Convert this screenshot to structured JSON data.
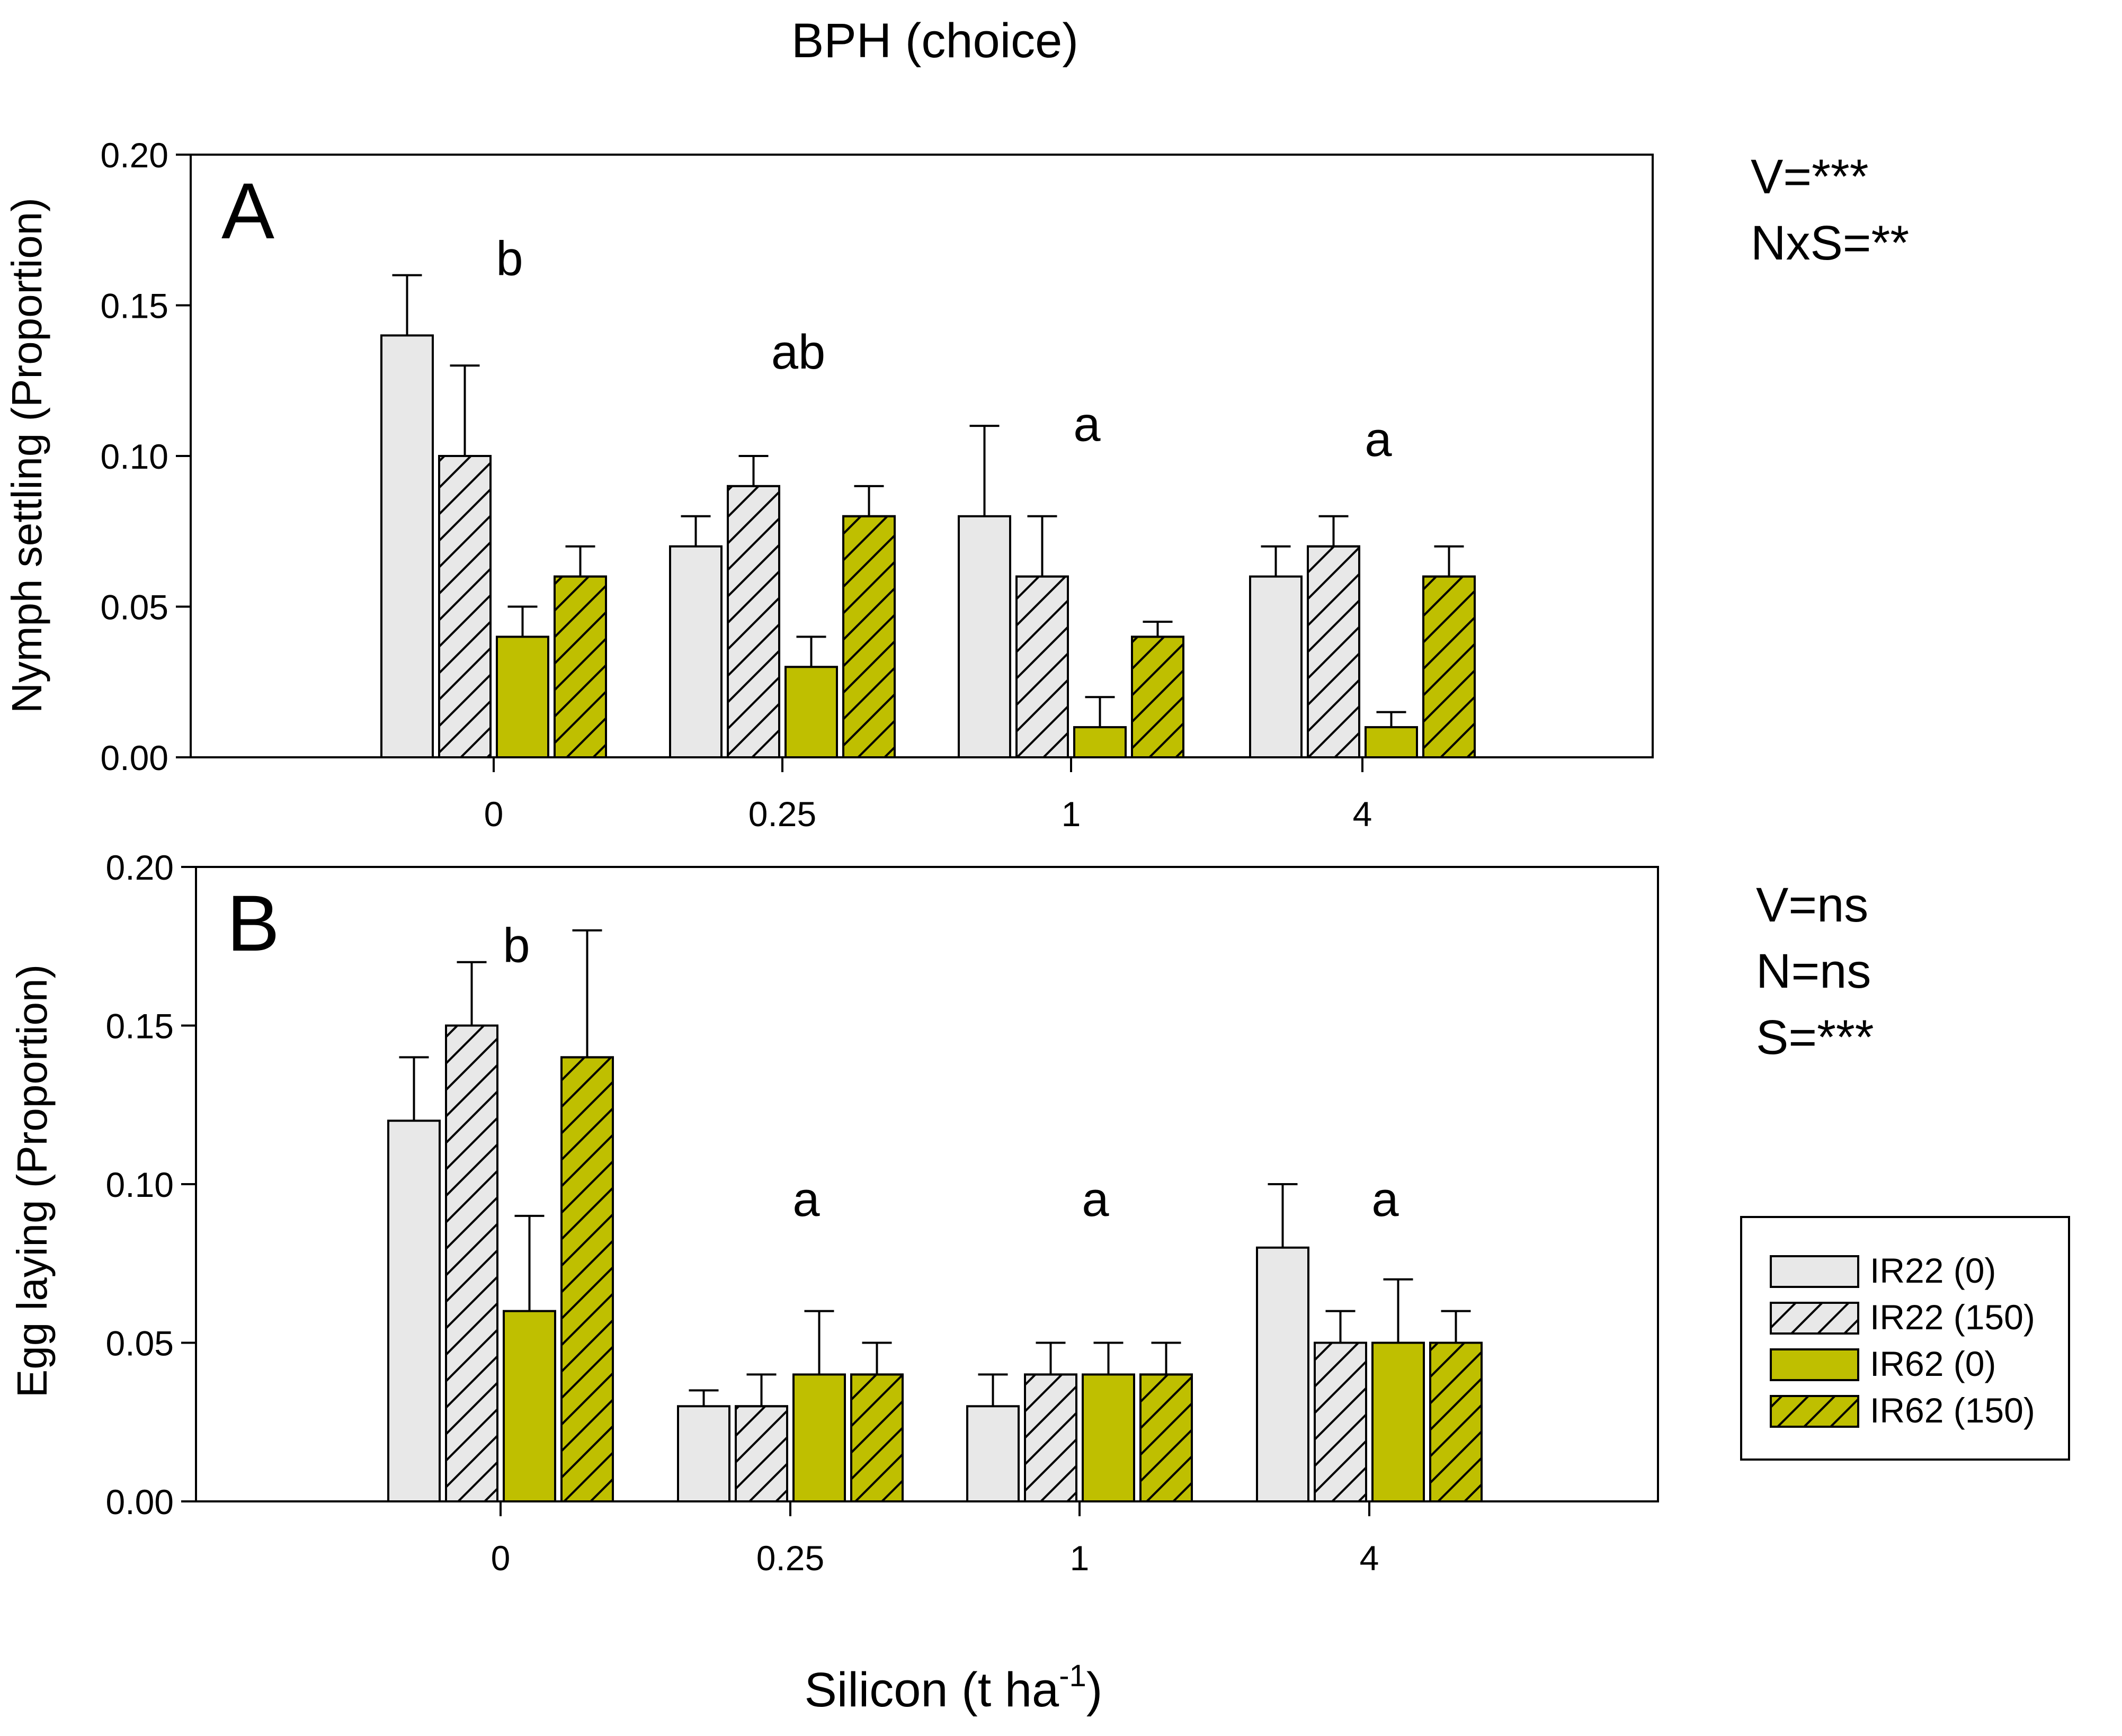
{
  "figure_title": "BPH (choice)",
  "x_axis_label_main": "Silicon (t ha",
  "x_axis_label_sup": "-1",
  "x_axis_label_close": ")",
  "legend": [
    {
      "label": "IR22 (0)",
      "color": "#e8e8e8",
      "hatch": false
    },
    {
      "label": "IR22 (150)",
      "color": "#e8e8e8",
      "hatch": true
    },
    {
      "label": "IR62 (0)",
      "color": "#bfbf00",
      "hatch": false
    },
    {
      "label": "IR62 (150)",
      "color": "#bfbf00",
      "hatch": true
    }
  ],
  "colors": {
    "ir22": "#e8e8e8",
    "ir62": "#bfbf00",
    "axis": "#000000"
  },
  "chart_data": [
    {
      "type": "bar",
      "panel_label": "A",
      "ylabel": "Nymph settling (Proportion)",
      "xlabel": "Silicon (t ha-1)",
      "ylim": [
        0,
        0.2
      ],
      "yticks": [
        "0.00",
        "0.05",
        "0.10",
        "0.15",
        "0.20"
      ],
      "ytick_values": [
        0,
        0.05,
        0.1,
        0.15,
        0.2
      ],
      "categories": [
        "0",
        "0.25",
        "1",
        "4"
      ],
      "series": [
        {
          "name": "IR22 (0)",
          "values": [
            0.14,
            0.07,
            0.08,
            0.06
          ],
          "errors": [
            0.02,
            0.01,
            0.03,
            0.01
          ]
        },
        {
          "name": "IR22 (150)",
          "values": [
            0.1,
            0.09,
            0.06,
            0.07
          ],
          "errors": [
            0.03,
            0.01,
            0.02,
            0.01
          ]
        },
        {
          "name": "IR62 (0)",
          "values": [
            0.04,
            0.03,
            0.01,
            0.01
          ],
          "errors": [
            0.01,
            0.01,
            0.01,
            0.005
          ]
        },
        {
          "name": "IR62 (150)",
          "values": [
            0.06,
            0.08,
            0.04,
            0.06
          ],
          "errors": [
            0.01,
            0.01,
            0.005,
            0.01
          ]
        }
      ],
      "group_letters": [
        "b",
        "ab",
        "a",
        "a"
      ],
      "group_letter_levels": [
        0.16,
        0.129,
        0.105,
        0.1
      ],
      "stats": [
        "V=***",
        "NxS=**"
      ]
    },
    {
      "type": "bar",
      "panel_label": "B",
      "ylabel": "Egg laying (Proportion)",
      "xlabel": "Silicon (t ha-1)",
      "ylim": [
        0,
        0.2
      ],
      "yticks": [
        "0.00",
        "0.05",
        "0.10",
        "0.15",
        "0.20"
      ],
      "ytick_values": [
        0,
        0.05,
        0.1,
        0.15,
        0.2
      ],
      "categories": [
        "0",
        "0.25",
        "1",
        "4"
      ],
      "series": [
        {
          "name": "IR22 (0)",
          "values": [
            0.12,
            0.03,
            0.03,
            0.08
          ],
          "errors": [
            0.02,
            0.005,
            0.01,
            0.02
          ]
        },
        {
          "name": "IR22 (150)",
          "values": [
            0.15,
            0.03,
            0.04,
            0.05
          ],
          "errors": [
            0.02,
            0.01,
            0.01,
            0.01
          ]
        },
        {
          "name": "IR62 (0)",
          "values": [
            0.06,
            0.04,
            0.04,
            0.05
          ],
          "errors": [
            0.03,
            0.02,
            0.01,
            0.02
          ]
        },
        {
          "name": "IR62 (150)",
          "values": [
            0.14,
            0.04,
            0.04,
            0.05
          ],
          "errors": [
            0.04,
            0.01,
            0.01,
            0.01
          ]
        }
      ],
      "group_letters": [
        "b",
        "a",
        "a",
        "a"
      ],
      "group_letter_levels": [
        0.17,
        0.09,
        0.09,
        0.09
      ],
      "stats": [
        "V=ns",
        "N=ns",
        "S=***"
      ]
    }
  ]
}
